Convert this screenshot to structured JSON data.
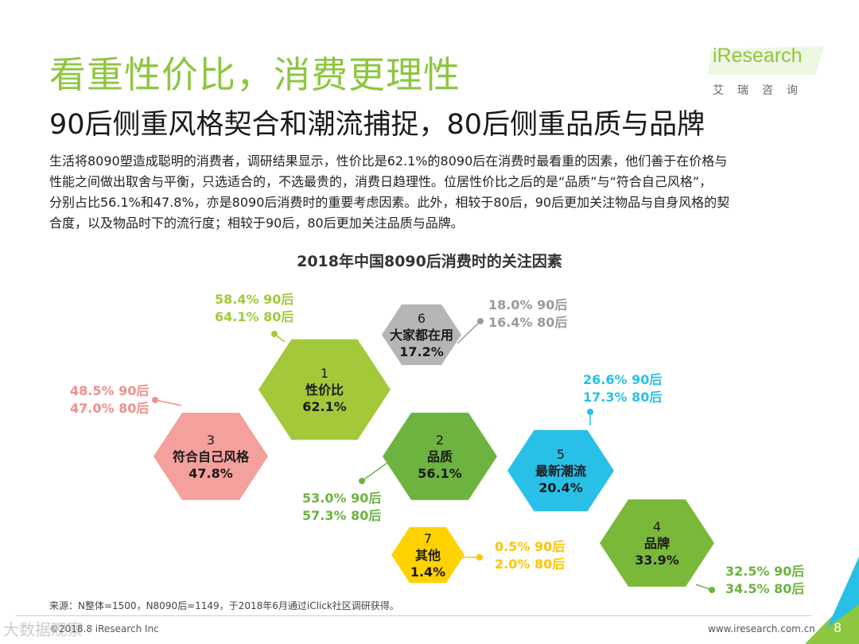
{
  "header": {
    "title": "看重性价比，消费更理性",
    "subtitle": "90后侧重风格契合和潮流捕捉，80后侧重品质与品牌"
  },
  "logo": {
    "name": "iResearch",
    "cn": "艾瑞咨询",
    "color": "#8dc63f"
  },
  "paragraph": [
    "生活将8090塑造成聪明的消费者，调研结果显示，性价比是62.1%的8090后在消费时最看重的因素，他们善于在价格与",
    "性能之间做出取舍与平衡，只选适合的，不选最贵的，消费日趋理性。位居性价比之后的是“品质”与“符合自己风格”，",
    "分别占比56.1%和47.8%，亦是8090后消费时的重要考虑因素。此外，相较于80后，90后更加关注物品与自身风格的契",
    "合度，以及物品时下的流行度；相较于90后，80后更加关注品质与品牌。"
  ],
  "chart_data": {
    "type": "other",
    "title": "2018年中国8090后消费时的关注因素",
    "items": [
      {
        "rank": "1",
        "name": "性价比",
        "value": "62.1%",
        "color": "#a3c93a",
        "callout": [
          "58.4% 90后",
          "64.1% 80后"
        ],
        "callout_color": "#a3c93a"
      },
      {
        "rank": "2",
        "name": "品质",
        "value": "56.1%",
        "color": "#6db33f",
        "callout": [
          "53.0% 90后",
          "57.3% 80后"
        ],
        "callout_color": "#6db33f"
      },
      {
        "rank": "3",
        "name": "符合自己风格",
        "value": "47.8%",
        "color": "#f4a09c",
        "callout": [
          "48.5% 90后",
          "47.0% 80后"
        ],
        "callout_color": "#ef8f8a"
      },
      {
        "rank": "4",
        "name": "品牌",
        "value": "33.9%",
        "color": "#7ab83a",
        "callout": [
          "32.5% 90后",
          "34.5% 80后"
        ],
        "callout_color": "#6db33f"
      },
      {
        "rank": "5",
        "name": "最新潮流",
        "value": "20.4%",
        "color": "#29c0e8",
        "callout": [
          "26.6% 90后",
          "17.3% 80后"
        ],
        "callout_color": "#29c0e8"
      },
      {
        "rank": "6",
        "name": "大家都在用",
        "value": "17.2%",
        "color": "#b5b5b5",
        "callout": [
          "18.0% 90后",
          "16.4% 80后"
        ],
        "callout_color": "#9a9a9a"
      },
      {
        "rank": "7",
        "name": "其他",
        "value": "1.4%",
        "color": "#ffd200",
        "callout": [
          "0.5% 90后",
          "2.0% 80后"
        ],
        "callout_color": "#ffc400"
      }
    ]
  },
  "source": "来源：N整体=1500，N8090后=1149，于2018年6月通过iClick社区调研获得。",
  "footer": {
    "left": "©2018.8 iResearch Inc",
    "right": "www.iresearch.com.cn",
    "page": "8",
    "accent": "#8dc63f"
  },
  "watermark": "大数据观察"
}
